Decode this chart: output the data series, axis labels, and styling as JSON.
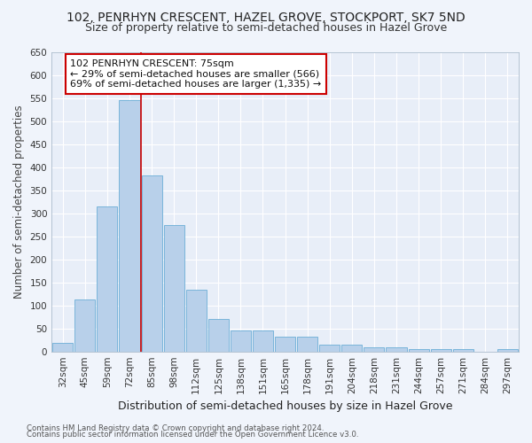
{
  "title": "102, PENRHYN CRESCENT, HAZEL GROVE, STOCKPORT, SK7 5ND",
  "subtitle": "Size of property relative to semi-detached houses in Hazel Grove",
  "xlabel": "Distribution of semi-detached houses by size in Hazel Grove",
  "ylabel": "Number of semi-detached properties",
  "footer1": "Contains HM Land Registry data © Crown copyright and database right 2024.",
  "footer2": "Contains public sector information licensed under the Open Government Licence v3.0.",
  "bin_labels": [
    "32sqm",
    "45sqm",
    "59sqm",
    "72sqm",
    "85sqm",
    "98sqm",
    "112sqm",
    "125sqm",
    "138sqm",
    "151sqm",
    "165sqm",
    "178sqm",
    "191sqm",
    "204sqm",
    "218sqm",
    "231sqm",
    "244sqm",
    "257sqm",
    "271sqm",
    "284sqm",
    "297sqm"
  ],
  "bar_values": [
    18,
    112,
    315,
    547,
    382,
    275,
    135,
    70,
    46,
    46,
    33,
    33,
    14,
    14,
    9,
    9,
    5,
    5,
    5,
    0,
    5
  ],
  "bar_color": "#b8d0ea",
  "bar_edge_color": "#6baed6",
  "vline_index": 3.5,
  "vline_color": "#cc0000",
  "annotation_label": "102 PENRHYN CRESCENT: 75sqm",
  "annotation_line1": "← 29% of semi-detached houses are smaller (566)",
  "annotation_line2": "69% of semi-detached houses are larger (1,335) →",
  "ylim": [
    0,
    650
  ],
  "yticks": [
    0,
    50,
    100,
    150,
    200,
    250,
    300,
    350,
    400,
    450,
    500,
    550,
    600,
    650
  ],
  "background_color": "#e8eef8",
  "grid_color": "#ffffff",
  "fig_bg_color": "#f0f4fb",
  "title_fontsize": 10,
  "subtitle_fontsize": 9,
  "axis_label_fontsize": 8.5,
  "tick_fontsize": 7.5,
  "annotation_fontsize": 8
}
